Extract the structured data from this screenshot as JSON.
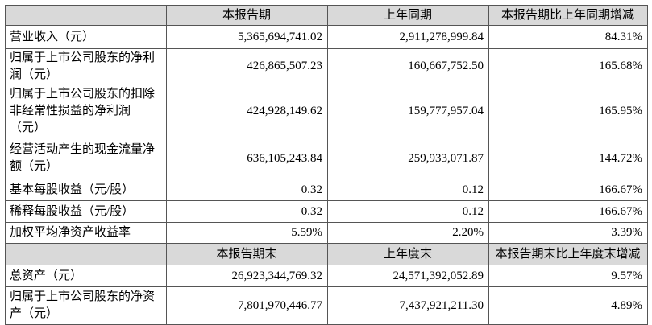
{
  "table": {
    "header": [
      "本报告期",
      "上年同期",
      "本报告期比上年同期增减"
    ],
    "rows": [
      [
        "营业收入（元）",
        "5,365,694,741.02",
        "2,911,278,999.84",
        "84.31%"
      ],
      [
        "归属于上市公司股东的净利润（元）",
        "426,865,507.23",
        "160,667,752.50",
        "165.68%"
      ],
      [
        "归属于上市公司股东的扣除非经常性损益的净利润（元）",
        "424,928,149.62",
        "159,777,957.04",
        "165.95%"
      ],
      [
        "经营活动产生的现金流量净额（元）",
        "636,105,243.84",
        "259,933,071.87",
        "144.72%"
      ],
      [
        "基本每股收益（元/股）",
        "0.32",
        "0.12",
        "166.67%"
      ],
      [
        "稀释每股收益（元/股）",
        "0.32",
        "0.12",
        "166.67%"
      ],
      [
        "加权平均净资产收益率",
        "5.59%",
        "2.20%",
        "3.39%"
      ]
    ],
    "header2": [
      "本报告期末",
      "上年度末",
      "本报告期末比上年度末增减"
    ],
    "rows2": [
      [
        "总资产（元）",
        "26,923,344,769.32",
        "24,571,392,052.89",
        "9.57%"
      ],
      [
        "归属于上市公司股东的净资产（元）",
        "7,801,970,446.77",
        "7,437,921,211.30",
        "4.89%"
      ]
    ]
  }
}
